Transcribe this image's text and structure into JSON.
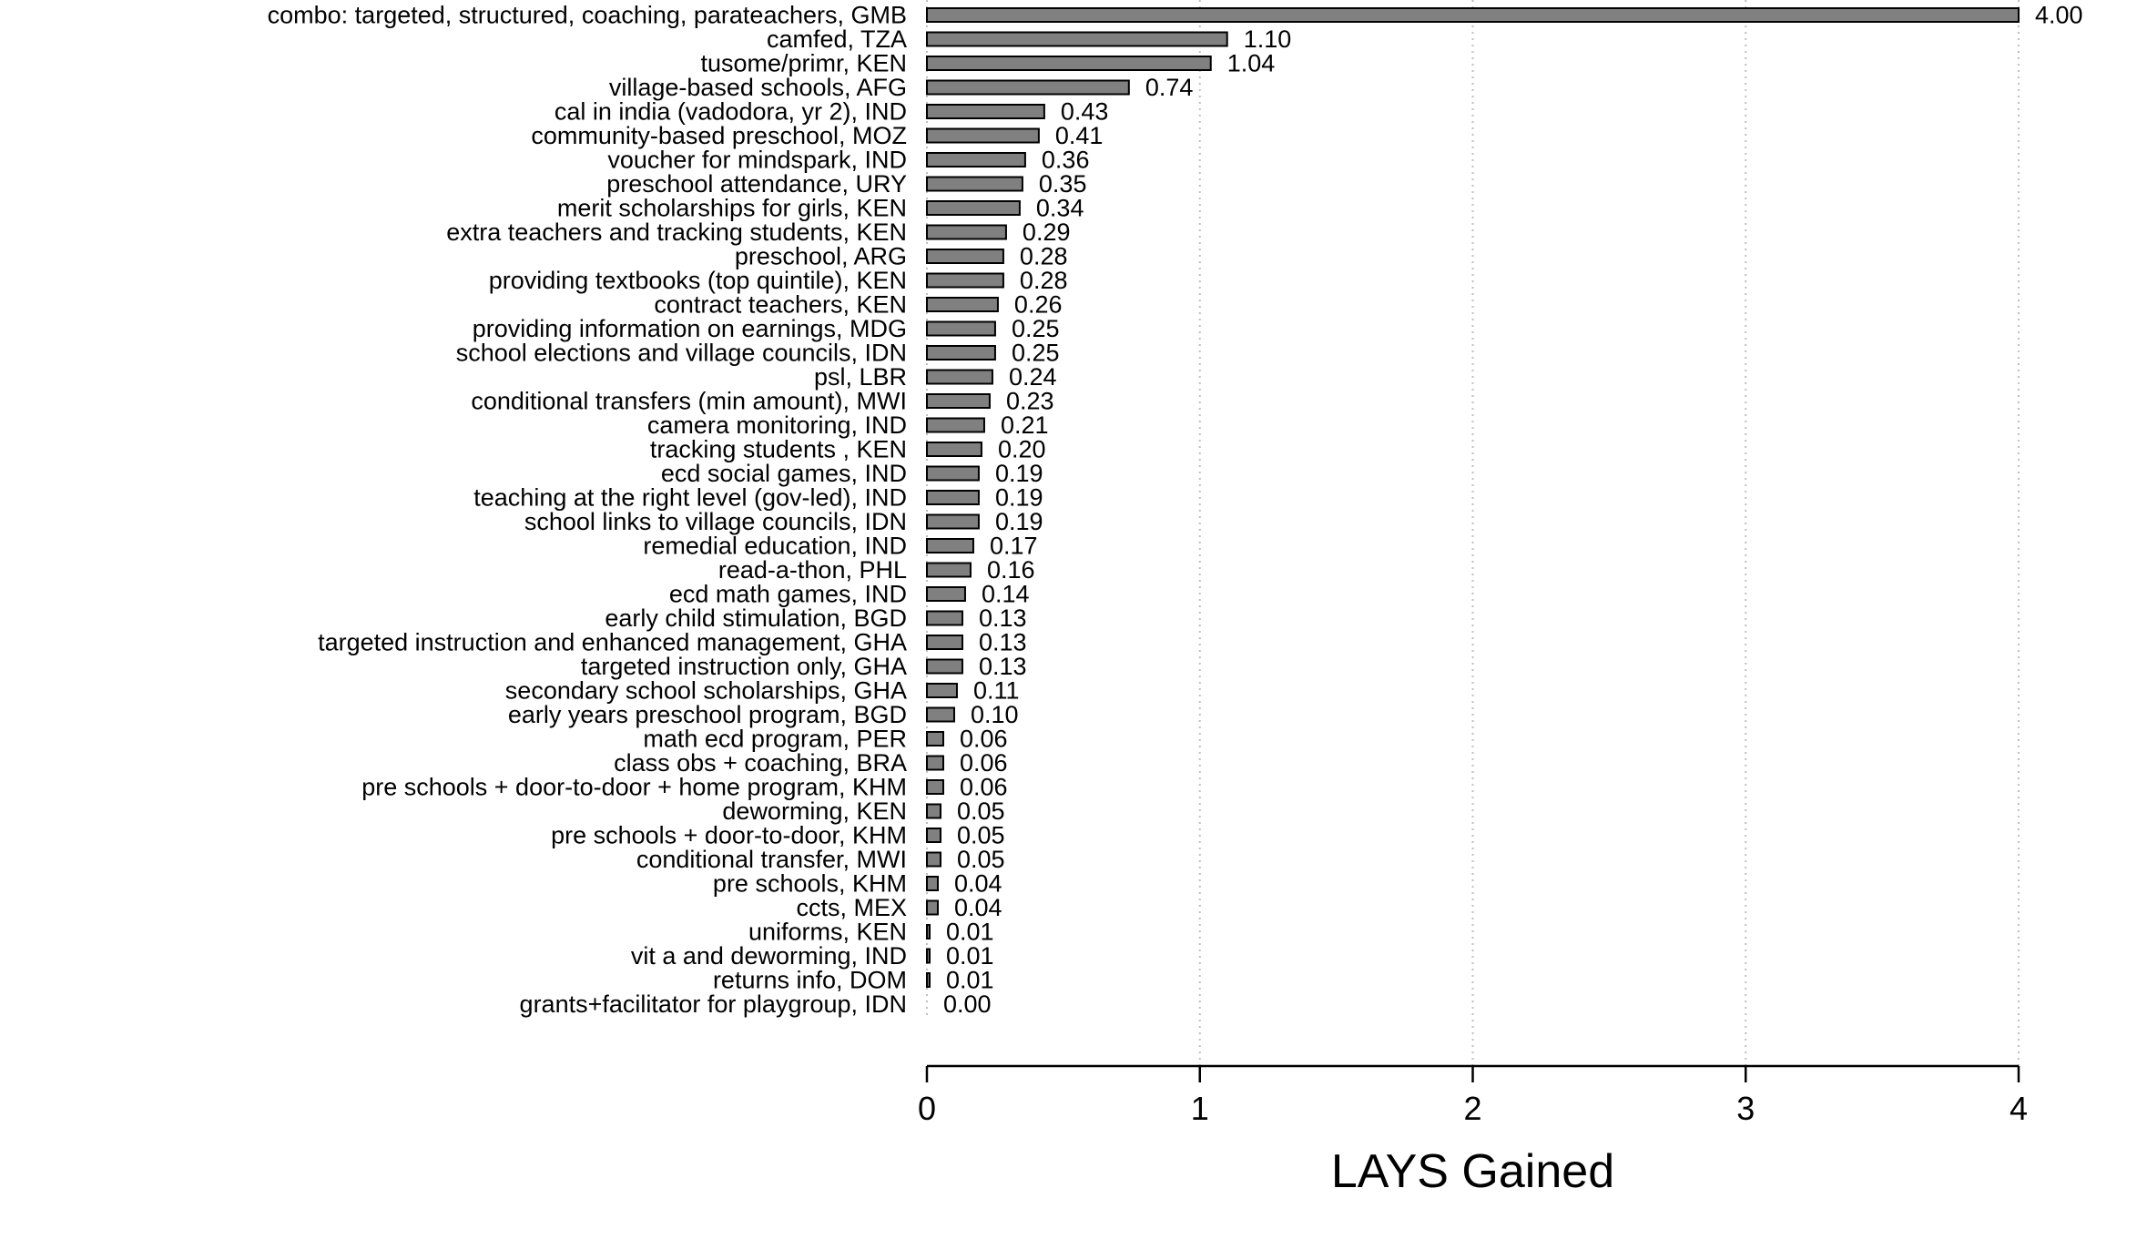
{
  "chart_data": {
    "type": "bar",
    "orientation": "horizontal",
    "title": "",
    "xlabel": "LAYS Gained",
    "ylabel": "",
    "xlim": [
      0,
      4
    ],
    "xticks": [
      0,
      1,
      2,
      3,
      4
    ],
    "grid": "vertical dotted at x ticks",
    "bar_color": "#808080",
    "bar_edge_color": "#000000",
    "categories": [
      "combo: targeted, structured, coaching, parateachers, GMB",
      "camfed, TZA",
      "tusome/primr, KEN",
      "village-based schools, AFG",
      "cal in india (vadodora, yr 2), IND",
      "community-based preschool, MOZ",
      "voucher for mindspark, IND",
      "preschool attendance, URY",
      "merit scholarships for girls, KEN",
      "extra teachers and tracking students, KEN",
      "preschool, ARG",
      "providing textbooks (top quintile), KEN",
      "contract teachers, KEN",
      "providing information on earnings, MDG",
      "school elections and village councils, IDN",
      "psl, LBR",
      "conditional transfers (min amount), MWI",
      "camera monitoring, IND",
      "tracking students , KEN",
      "ecd social games, IND",
      "teaching at the right level (gov-led), IND",
      "school links to village councils, IDN",
      "remedial education, IND",
      "read-a-thon, PHL",
      "ecd math games, IND",
      "early child stimulation, BGD",
      "targeted instruction and enhanced management, GHA",
      "targeted instruction only, GHA",
      "secondary school scholarships, GHA",
      "early years preschool program, BGD",
      "math ecd program, PER",
      "class obs + coaching, BRA",
      "pre schools + door-to-door + home program, KHM",
      "deworming, KEN",
      "pre schools + door-to-door, KHM",
      "conditional transfer, MWI",
      "pre schools, KHM",
      "ccts, MEX",
      "uniforms, KEN",
      "vit a and deworming, IND",
      "returns info, DOM",
      "grants+facilitator for playgroup, IDN"
    ],
    "values": [
      4.0,
      1.1,
      1.04,
      0.74,
      0.43,
      0.41,
      0.36,
      0.35,
      0.34,
      0.29,
      0.28,
      0.28,
      0.26,
      0.25,
      0.25,
      0.24,
      0.23,
      0.21,
      0.2,
      0.19,
      0.19,
      0.19,
      0.17,
      0.16,
      0.14,
      0.13,
      0.13,
      0.13,
      0.11,
      0.1,
      0.06,
      0.06,
      0.06,
      0.05,
      0.05,
      0.05,
      0.04,
      0.04,
      0.01,
      0.01,
      0.01,
      0.0
    ],
    "value_labels": [
      "4.00",
      "1.10",
      "1.04",
      "0.74",
      "0.43",
      "0.41",
      "0.36",
      "0.35",
      "0.34",
      "0.29",
      "0.28",
      "0.28",
      "0.26",
      "0.25",
      "0.25",
      "0.24",
      "0.23",
      "0.21",
      "0.20",
      "0.19",
      "0.19",
      "0.19",
      "0.17",
      "0.16",
      "0.14",
      "0.13",
      "0.13",
      "0.13",
      "0.11",
      "0.10",
      "0.06",
      "0.06",
      "0.06",
      "0.05",
      "0.05",
      "0.05",
      "0.04",
      "0.04",
      "0.01",
      "0.01",
      "0.01",
      "0.00"
    ]
  }
}
